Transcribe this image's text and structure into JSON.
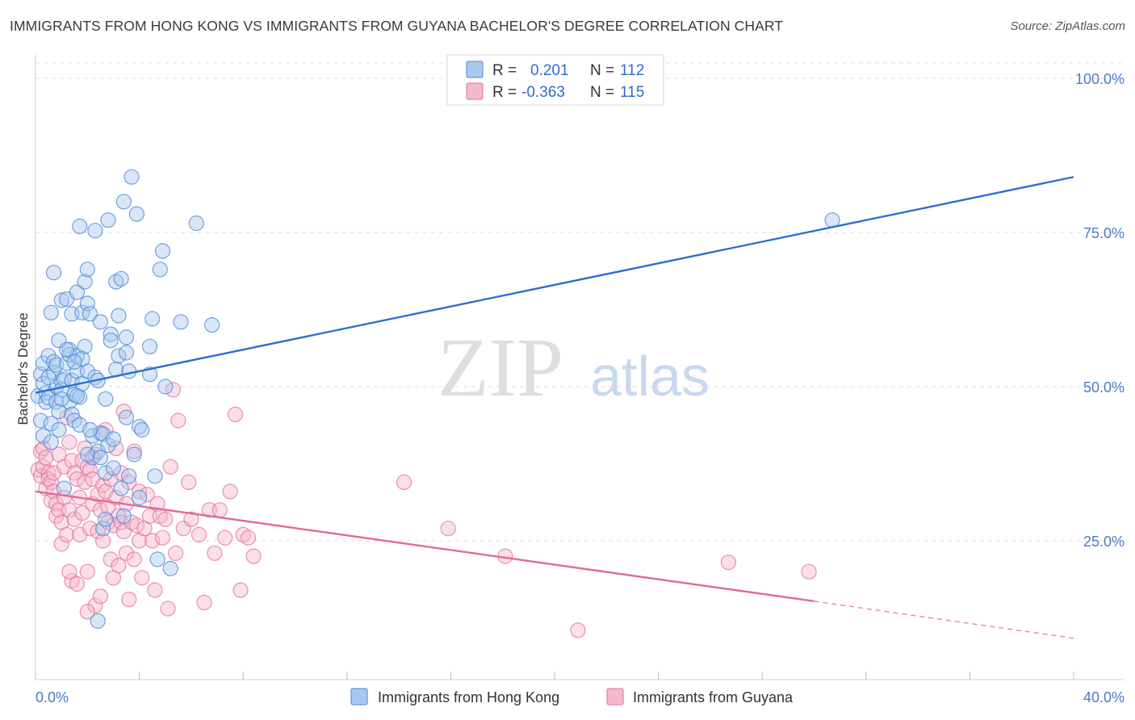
{
  "title": "IMMIGRANTS FROM HONG KONG VS IMMIGRANTS FROM GUYANA BACHELOR'S DEGREE CORRELATION CHART",
  "source": "Source: ZipAtlas.com",
  "watermark": {
    "zip": "ZIP",
    "atlas": "atlas"
  },
  "colors": {
    "blue": "#4a86d6",
    "blue_fill": "#a9c8f0",
    "blue_line": "#2e6fcf",
    "pink": "#e06f98",
    "pink_fill": "#f6b9cc",
    "pink_line": "#e26a95",
    "tick_label": "#4a7cc7",
    "grid": "#dcdcdc"
  },
  "legend": {
    "r_label": "R =",
    "n_label": "N =",
    "rows": [
      {
        "series": "hongkong",
        "r": "0.201",
        "n": "112"
      },
      {
        "series": "guyana",
        "r": "-0.363",
        "n": "115"
      }
    ]
  },
  "chart_data": {
    "type": "scatter",
    "xlabel": "",
    "ylabel": "Bachelor's Degree",
    "xlim": [
      0,
      40
    ],
    "ylim": [
      0,
      105
    ],
    "x_tick_labels": [
      "0.0%",
      "40.0%"
    ],
    "y_ticks": [
      25,
      50,
      75,
      100
    ],
    "y_tick_labels": [
      "25.0%",
      "50.0%",
      "75.0%",
      "100.0%"
    ],
    "grid": "horizontal dashed",
    "series": [
      {
        "name": "Immigrants from Hong Kong",
        "key": "hongkong",
        "trend": {
          "x": [
            0,
            40
          ],
          "y": [
            49.0,
            84.0
          ],
          "dashed_from": null
        },
        "points": [
          [
            0.1,
            48.5
          ],
          [
            0.2,
            44.5
          ],
          [
            0.2,
            52
          ],
          [
            0.3,
            53.8
          ],
          [
            0.3,
            42
          ],
          [
            0.4,
            49
          ],
          [
            0.4,
            47.5
          ],
          [
            0.5,
            55
          ],
          [
            0.5,
            48.2
          ],
          [
            0.6,
            62
          ],
          [
            0.6,
            44
          ],
          [
            0.7,
            54
          ],
          [
            0.7,
            52.3
          ],
          [
            0.7,
            68.5
          ],
          [
            0.8,
            53.5
          ],
          [
            0.8,
            47.5
          ],
          [
            0.8,
            50
          ],
          [
            0.9,
            57.5
          ],
          [
            0.9,
            46
          ],
          [
            1.0,
            64
          ],
          [
            1.0,
            51
          ],
          [
            1.0,
            49.5
          ],
          [
            1.1,
            33.5
          ],
          [
            1.1,
            51.2
          ],
          [
            1.2,
            64.2
          ],
          [
            1.2,
            53.8
          ],
          [
            1.3,
            56
          ],
          [
            1.3,
            55.2
          ],
          [
            1.3,
            47.5
          ],
          [
            1.4,
            61.8
          ],
          [
            1.4,
            51
          ],
          [
            1.4,
            45.5
          ],
          [
            1.5,
            44.5
          ],
          [
            1.5,
            48.7
          ],
          [
            1.6,
            65.3
          ],
          [
            1.6,
            55
          ],
          [
            1.6,
            52.5
          ],
          [
            1.7,
            48.3
          ],
          [
            1.7,
            76
          ],
          [
            1.7,
            43.8
          ],
          [
            1.8,
            62
          ],
          [
            1.8,
            50.5
          ],
          [
            1.9,
            67
          ],
          [
            1.9,
            56.5
          ],
          [
            2.0,
            69
          ],
          [
            2.0,
            63.5
          ],
          [
            2.0,
            52.5
          ],
          [
            2.1,
            61.8
          ],
          [
            2.2,
            38.5
          ],
          [
            2.2,
            42
          ],
          [
            2.3,
            75.3
          ],
          [
            2.3,
            51.5
          ],
          [
            2.4,
            51
          ],
          [
            2.4,
            39.5
          ],
          [
            2.5,
            60.5
          ],
          [
            2.5,
            42.5
          ],
          [
            2.6,
            27
          ],
          [
            2.6,
            42.3
          ],
          [
            2.7,
            28.5
          ],
          [
            2.7,
            36
          ],
          [
            2.8,
            77
          ],
          [
            2.8,
            40.5
          ],
          [
            2.9,
            58.5
          ],
          [
            2.9,
            57.5
          ],
          [
            3.0,
            36.8
          ],
          [
            3.1,
            67
          ],
          [
            3.1,
            52.8
          ],
          [
            3.2,
            61.5
          ],
          [
            3.2,
            55
          ],
          [
            3.3,
            67.5
          ],
          [
            3.3,
            33.5
          ],
          [
            3.4,
            80
          ],
          [
            3.4,
            29
          ],
          [
            3.5,
            55.5
          ],
          [
            3.5,
            58
          ],
          [
            3.6,
            52.5
          ],
          [
            3.6,
            35.5
          ],
          [
            3.7,
            84
          ],
          [
            3.8,
            39
          ],
          [
            3.9,
            78
          ],
          [
            4.0,
            32
          ],
          [
            4.0,
            43.5
          ],
          [
            4.1,
            43
          ],
          [
            4.4,
            56.5
          ],
          [
            4.4,
            52
          ],
          [
            4.5,
            61
          ],
          [
            4.6,
            35.5
          ],
          [
            4.7,
            22
          ],
          [
            4.8,
            69
          ],
          [
            4.9,
            72
          ],
          [
            5.0,
            50
          ],
          [
            5.2,
            20.5
          ],
          [
            5.6,
            60.5
          ],
          [
            6.2,
            76.5
          ],
          [
            6.8,
            60
          ],
          [
            1.0,
            48
          ],
          [
            1.6,
            48.5
          ],
          [
            2.0,
            39
          ],
          [
            2.5,
            38.5
          ],
          [
            3.0,
            41.5
          ],
          [
            0.3,
            50.5
          ],
          [
            0.5,
            51.5
          ],
          [
            1.2,
            56
          ],
          [
            1.8,
            54.5
          ],
          [
            2.4,
            12
          ],
          [
            3.5,
            45
          ],
          [
            0.9,
            43
          ],
          [
            1.5,
            54
          ],
          [
            2.1,
            43
          ],
          [
            2.7,
            48
          ],
          [
            0.6,
            41
          ],
          [
            30.7,
            77
          ]
        ]
      },
      {
        "name": "Immigrants from Guyana",
        "key": "guyana",
        "trend": {
          "x": [
            0,
            30
          ],
          "y": [
            33.0,
            15.2
          ],
          "dashed_to": [
            40,
            9.2
          ]
        },
        "points": [
          [
            0.1,
            36.5
          ],
          [
            0.2,
            39.5
          ],
          [
            0.2,
            35.5
          ],
          [
            0.3,
            37
          ],
          [
            0.3,
            40
          ],
          [
            0.4,
            33.5
          ],
          [
            0.4,
            38.5
          ],
          [
            0.5,
            36
          ],
          [
            0.5,
            35
          ],
          [
            0.6,
            31.5
          ],
          [
            0.6,
            34.5
          ],
          [
            0.7,
            33
          ],
          [
            0.7,
            36
          ],
          [
            0.8,
            31
          ],
          [
            0.8,
            29
          ],
          [
            0.9,
            39
          ],
          [
            0.9,
            30
          ],
          [
            1.0,
            24.5
          ],
          [
            1.0,
            28
          ],
          [
            1.1,
            37
          ],
          [
            1.1,
            32
          ],
          [
            1.2,
            26
          ],
          [
            1.2,
            45
          ],
          [
            1.3,
            30
          ],
          [
            1.3,
            41
          ],
          [
            1.4,
            18.5
          ],
          [
            1.4,
            38
          ],
          [
            1.5,
            36
          ],
          [
            1.5,
            28.5
          ],
          [
            1.6,
            35
          ],
          [
            1.6,
            18
          ],
          [
            1.7,
            26
          ],
          [
            1.7,
            32
          ],
          [
            1.8,
            29.5
          ],
          [
            1.8,
            38
          ],
          [
            1.9,
            34.5
          ],
          [
            1.9,
            40
          ],
          [
            2.0,
            20
          ],
          [
            2.0,
            37
          ],
          [
            2.1,
            36.5
          ],
          [
            2.1,
            27
          ],
          [
            2.2,
            31
          ],
          [
            2.2,
            35
          ],
          [
            2.3,
            14.5
          ],
          [
            2.3,
            39
          ],
          [
            2.4,
            32.5
          ],
          [
            2.4,
            26.5
          ],
          [
            2.5,
            16
          ],
          [
            2.5,
            30
          ],
          [
            2.6,
            34
          ],
          [
            2.6,
            25
          ],
          [
            2.7,
            33
          ],
          [
            2.7,
            43
          ],
          [
            2.8,
            28
          ],
          [
            2.8,
            30.5
          ],
          [
            2.9,
            22
          ],
          [
            2.9,
            35
          ],
          [
            3.0,
            19
          ],
          [
            3.0,
            27.5
          ],
          [
            3.1,
            32
          ],
          [
            3.1,
            40
          ],
          [
            3.2,
            29
          ],
          [
            3.2,
            21
          ],
          [
            3.3,
            36
          ],
          [
            3.3,
            28
          ],
          [
            3.4,
            26.5
          ],
          [
            3.4,
            46
          ],
          [
            3.5,
            31
          ],
          [
            3.5,
            23
          ],
          [
            3.6,
            34.5
          ],
          [
            3.7,
            28
          ],
          [
            3.8,
            39.5
          ],
          [
            3.8,
            22
          ],
          [
            3.9,
            27.5
          ],
          [
            4.0,
            25
          ],
          [
            4.0,
            33
          ],
          [
            4.1,
            19
          ],
          [
            4.2,
            27
          ],
          [
            4.3,
            32.5
          ],
          [
            4.4,
            29
          ],
          [
            4.5,
            25
          ],
          [
            4.6,
            17
          ],
          [
            4.7,
            31
          ],
          [
            4.8,
            29
          ],
          [
            4.9,
            25.5
          ],
          [
            5.0,
            28.5
          ],
          [
            5.1,
            14
          ],
          [
            5.2,
            37
          ],
          [
            5.3,
            49.5
          ],
          [
            5.4,
            23
          ],
          [
            5.5,
            44.5
          ],
          [
            5.7,
            27
          ],
          [
            5.9,
            34.5
          ],
          [
            6.0,
            28.5
          ],
          [
            6.3,
            26
          ],
          [
            6.5,
            15
          ],
          [
            6.7,
            30
          ],
          [
            6.9,
            23
          ],
          [
            7.1,
            30
          ],
          [
            7.3,
            25.5
          ],
          [
            7.5,
            33
          ],
          [
            7.7,
            45.5
          ],
          [
            8.0,
            26
          ],
          [
            8.2,
            25.5
          ],
          [
            8.4,
            22.5
          ],
          [
            14.2,
            34.5
          ],
          [
            15.9,
            27
          ],
          [
            18.1,
            22.5
          ],
          [
            20.9,
            10.5
          ],
          [
            26.7,
            21.5
          ],
          [
            29.8,
            20
          ],
          [
            7.9,
            17
          ],
          [
            3.6,
            15.5
          ],
          [
            1.3,
            20
          ],
          [
            2.0,
            13.5
          ]
        ]
      }
    ]
  },
  "bottom_legend": [
    {
      "series": "hongkong",
      "label": "Immigrants from Hong Kong"
    },
    {
      "series": "guyana",
      "label": "Immigrants from Guyana"
    }
  ]
}
